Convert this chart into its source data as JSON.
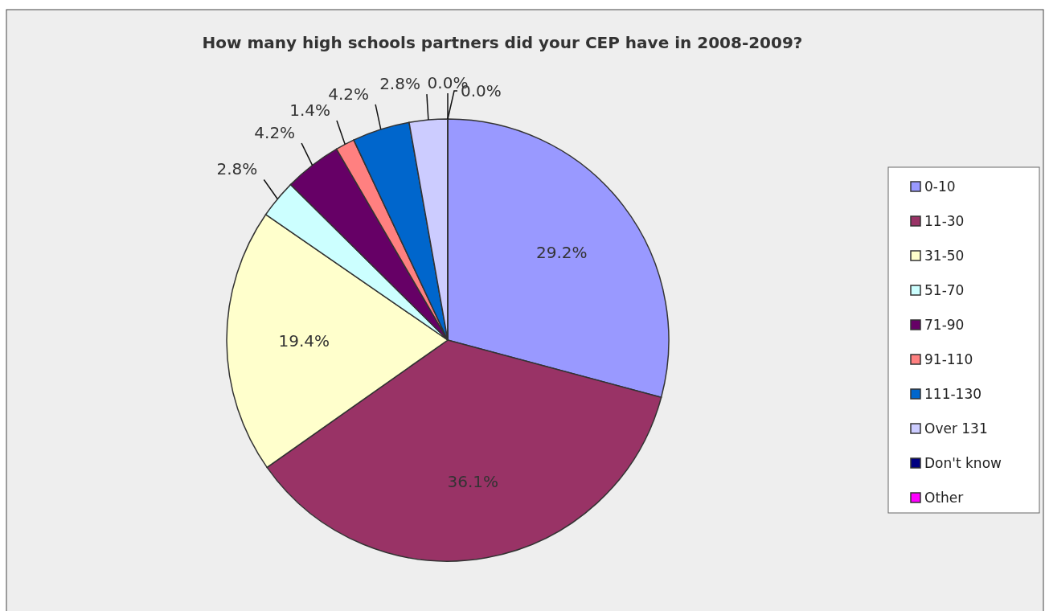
{
  "chart_data": {
    "type": "pie",
    "title": "How many high schools partners did your CEP have in 2008-2009?",
    "categories": [
      "0-10",
      "11-30",
      "31-50",
      "51-70",
      "71-90",
      "91-110",
      "111-130",
      "Over 131",
      "Don't know",
      "Other"
    ],
    "values": [
      29.2,
      36.1,
      19.4,
      2.8,
      4.2,
      1.4,
      4.2,
      2.8,
      0,
      0
    ],
    "value_labels": [
      "29.2%",
      "36.1%",
      "19.4%",
      "2.8%",
      "4.2%",
      "1.4%",
      "4.2%",
      "2.8%",
      "0.0%",
      "0.0%"
    ],
    "colors": [
      "#9999ff",
      "#993366",
      "#ffffcc",
      "#ccffff",
      "#660066",
      "#ff8080",
      "#0066cc",
      "#ccccff",
      "#000080",
      "#ff00ff"
    ],
    "legend": "right"
  }
}
